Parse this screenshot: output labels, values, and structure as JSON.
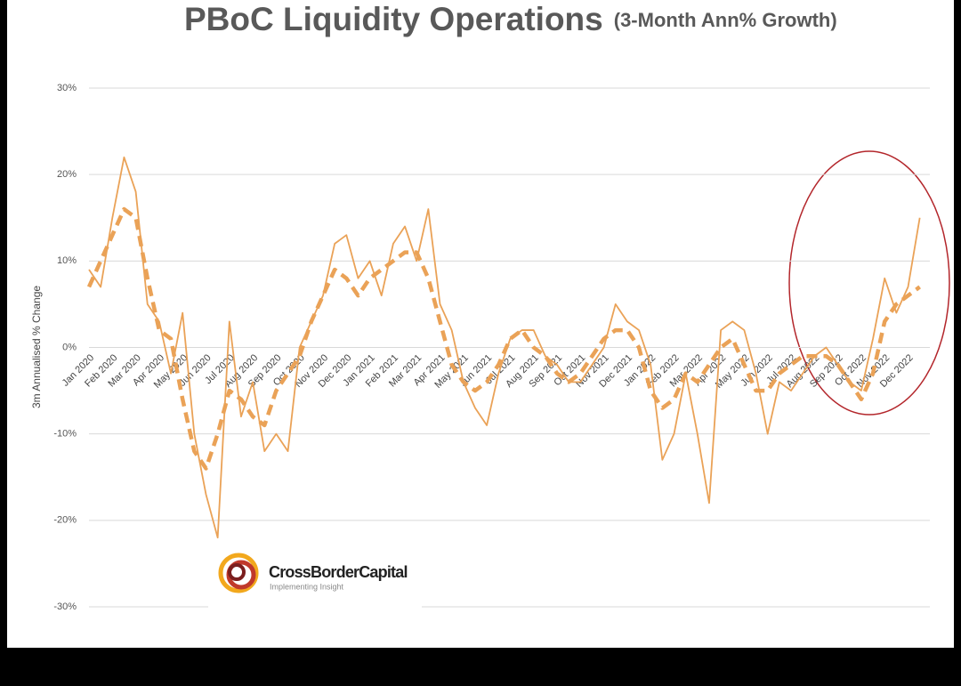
{
  "chart_data": {
    "type": "line",
    "title": "PBoC Liquidity Operations",
    "subtitle": "(3-Month Ann% Growth)",
    "y_label": "3m Annualised % Change",
    "brand": "CrossBorderCapital",
    "brand_tagline": "Implementing Insight",
    "categories": [
      "Jan 2020",
      null,
      "Feb 2020",
      null,
      "Mar 2020",
      null,
      "Apr 2020",
      null,
      "May 2020",
      null,
      "Jun 2020",
      null,
      "Jul 2020",
      null,
      "Aug 2020",
      null,
      "Sep 2020",
      null,
      "Oct 2020",
      null,
      "Nov 2020",
      null,
      "Dec 2020",
      null,
      "Jan 2021",
      null,
      "Feb 2021",
      null,
      "Mar 2021",
      null,
      "Apr 2021",
      null,
      "May 2021",
      null,
      "Jun 2021",
      null,
      "Jul 2021",
      null,
      "Aug 2021",
      null,
      "Sep 2021",
      null,
      "Oct 2021",
      null,
      "Nov 2021",
      null,
      "Dec 2021",
      null,
      "Jan 2022",
      null,
      "Feb 2022",
      null,
      "Mar 2022",
      null,
      "Apr 2022",
      null,
      "May 2022",
      null,
      "Jun 2022",
      null,
      "Jul 2022",
      null,
      "Aug 2022",
      null,
      "Sep 2022",
      null,
      "Oct 2022",
      null,
      "Nov 2022",
      null,
      "Dec 2022",
      null
    ],
    "series": [
      {
        "color": "#eaa257",
        "style": "solid",
        "values": [
          9,
          7,
          15,
          22,
          18,
          5,
          3,
          -3,
          4,
          -10,
          -17,
          -22,
          3,
          -8,
          -4,
          -12,
          -10,
          -12,
          0,
          3,
          6,
          12,
          13,
          8,
          10,
          6,
          12,
          14,
          10,
          16,
          5,
          2,
          -4,
          -7,
          -9,
          -3,
          1,
          2,
          2,
          -1,
          -2,
          -4,
          -4,
          -2,
          0,
          5,
          3,
          2,
          -2,
          -13,
          -10,
          -3,
          -10,
          -18,
          2,
          3,
          2,
          -3,
          -10,
          -4,
          -5,
          -3,
          -1,
          0,
          -2,
          -4,
          -5,
          1,
          8,
          4,
          7,
          15
        ]
      },
      {
        "color": "#eaa257",
        "style": "dashed",
        "values": [
          7,
          10,
          13,
          16,
          15,
          8,
          2,
          1,
          -6,
          -12,
          -14,
          -10,
          -5,
          -6,
          -8,
          -9,
          -5,
          -3,
          -1,
          3,
          6,
          9,
          8,
          6,
          8,
          9,
          10,
          11,
          11,
          8,
          3,
          -2,
          -4,
          -5,
          -4,
          -2,
          1,
          2,
          0,
          -1,
          -3,
          -4,
          -3,
          -1,
          1,
          2,
          2,
          0,
          -5,
          -7,
          -6,
          -3,
          -4,
          -2,
          0,
          1,
          -2,
          -5,
          -5,
          -3,
          -2,
          -1,
          -1,
          -1,
          -2,
          -4,
          -6,
          -3,
          3,
          5,
          6,
          7
        ]
      }
    ],
    "ylim": [
      -30,
      30
    ],
    "yticks": [
      {
        "value": -30,
        "label": "-30%"
      },
      {
        "value": -20,
        "label": "-20%"
      },
      {
        "value": -10,
        "label": "-10%"
      },
      {
        "value": 0,
        "label": "0%"
      },
      {
        "value": 10,
        "label": "10%"
      },
      {
        "value": 20,
        "label": "20%"
      },
      {
        "value": 30,
        "label": "30%"
      }
    ],
    "grid": true
  }
}
